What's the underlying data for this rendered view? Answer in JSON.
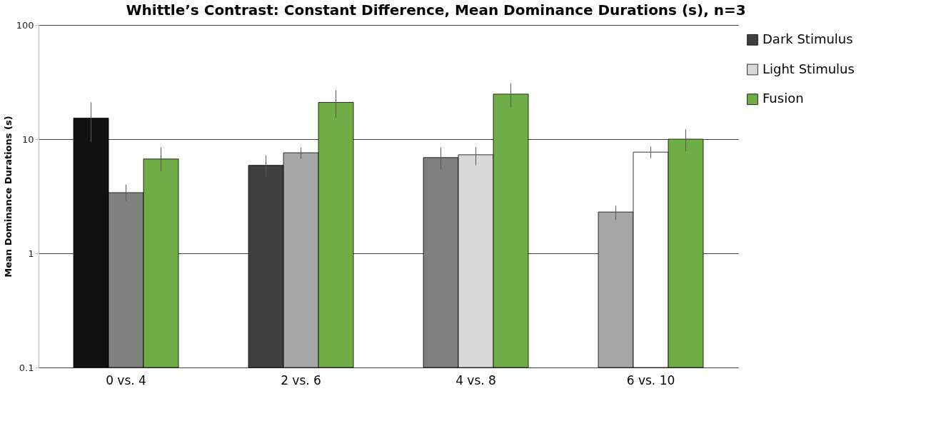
{
  "chart_data": {
    "type": "bar",
    "title": "Whittle’s Contrast: Constant Difference, Mean Dominance Durations (s), n=3",
    "ylabel": "Mean Dominance Durations (s)",
    "categories": [
      "0 vs. 4",
      "2 vs. 6",
      "4 vs. 8",
      "6 vs. 10"
    ],
    "series": [
      {
        "name": "Dark Stimulus",
        "color": "#404040",
        "colors": [
          "#111111",
          "#404040",
          "#808080",
          "#a6a6a6"
        ],
        "values": [
          15.3,
          5.9,
          6.9,
          2.3
        ],
        "errors": [
          [
            9.4,
            21
          ],
          [
            4.7,
            7.2
          ],
          [
            5.4,
            8.4
          ],
          [
            1.96,
            2.6
          ]
        ]
      },
      {
        "name": "Light Stimulus",
        "color": "#d9d9d9",
        "colors": [
          "#808080",
          "#a6a6a6",
          "#d9d9d9",
          "#ffffff"
        ],
        "values": [
          3.4,
          7.6,
          7.3,
          7.7
        ],
        "errors": [
          [
            2.9,
            4
          ],
          [
            6.7,
            8.4
          ],
          [
            5.9,
            8.5
          ],
          [
            6.8,
            8.6
          ]
        ]
      },
      {
        "name": "Fusion",
        "color": "#70ad47",
        "colors": [
          "#70ad47",
          "#70ad47",
          "#70ad47",
          "#70ad47"
        ],
        "values": [
          6.7,
          21,
          24.8,
          10
        ],
        "errors": [
          [
            5.2,
            8.4
          ],
          [
            15.3,
            26.8
          ],
          [
            18.9,
            30.9
          ],
          [
            7.8,
            12.2
          ]
        ]
      }
    ],
    "log": true,
    "ylim": [
      0.1,
      100
    ],
    "yticks": [
      0.1,
      1,
      10,
      100
    ],
    "grid": "y",
    "legend": "right"
  }
}
